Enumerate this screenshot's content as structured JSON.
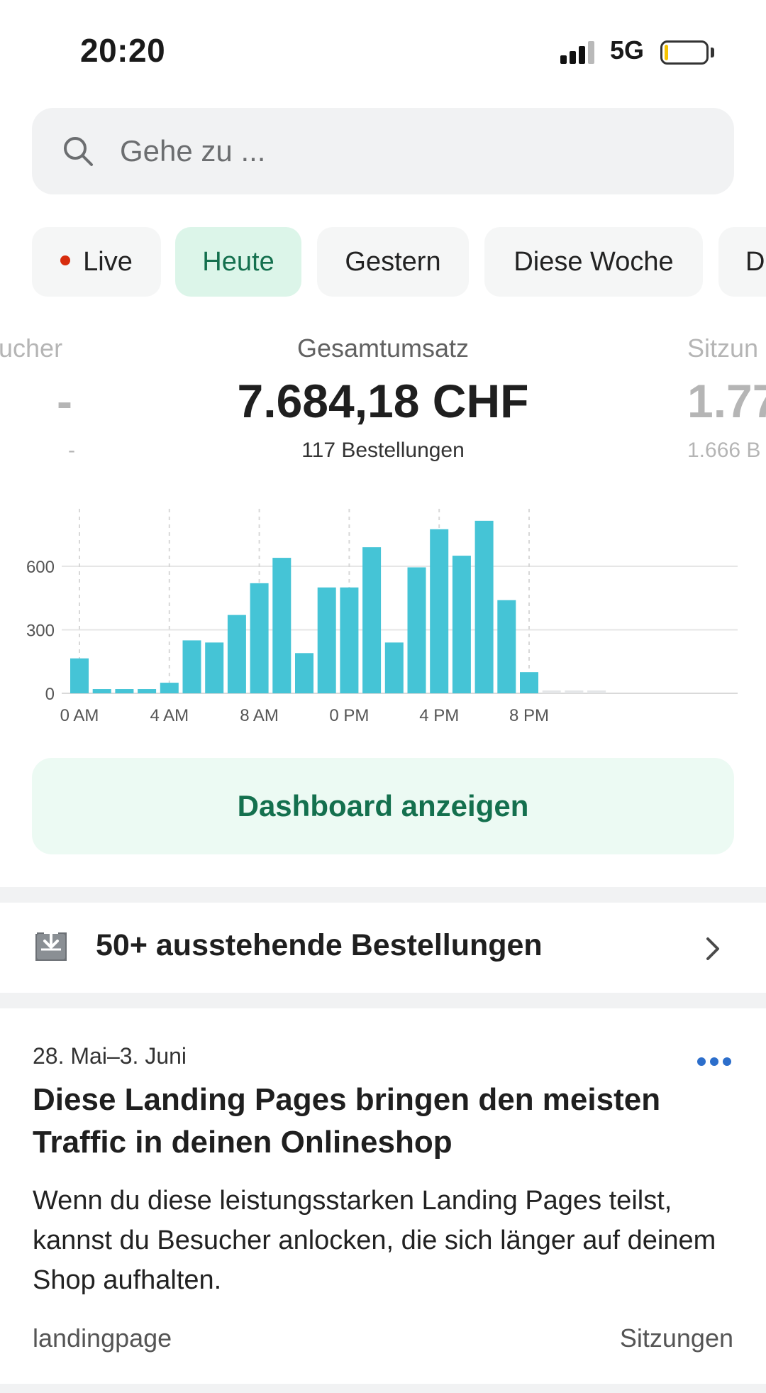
{
  "status_bar": {
    "time": "20:20",
    "network": "5G",
    "icons": [
      "signal-bars-icon",
      "battery-icon"
    ]
  },
  "search": {
    "placeholder": "Gehe zu ...",
    "icon": "search-icon"
  },
  "tabs": [
    {
      "label": "Live",
      "has_dot": true
    },
    {
      "label": "Heute",
      "active": true
    },
    {
      "label": "Gestern"
    },
    {
      "label": "Diese Woche"
    },
    {
      "label": "D"
    }
  ],
  "metrics": {
    "left": {
      "label": "ucher",
      "value": "-",
      "sub": "-"
    },
    "center": {
      "label": "Gesamtumsatz",
      "value": "7.684,18 CHF",
      "sub": "117 Bestellungen"
    },
    "right": {
      "label": "Sitzun",
      "value": "1.77",
      "sub": "1.666 B"
    }
  },
  "colors": {
    "accent_green": "#14704e",
    "bar": "#45c4d6",
    "live_dot": "#d72c0d",
    "link_blue": "#2c6ecb"
  },
  "chart_data": {
    "type": "bar",
    "categories": [
      "0",
      "1",
      "2",
      "3",
      "4",
      "5",
      "6",
      "7",
      "8",
      "9",
      "10",
      "11",
      "12",
      "13",
      "14",
      "15",
      "16",
      "17",
      "18",
      "19",
      "20",
      "21",
      "22",
      "23"
    ],
    "values": [
      165,
      20,
      20,
      20,
      50,
      250,
      240,
      370,
      520,
      640,
      190,
      500,
      500,
      690,
      240,
      595,
      775,
      650,
      815,
      440,
      100,
      12,
      12,
      12
    ],
    "ylim": [
      0,
      900
    ],
    "yticks": [
      "0",
      "300",
      "600"
    ],
    "ytick_values": [
      0,
      300,
      600
    ],
    "xtick_labels": [
      "0 AM",
      "4 AM",
      "8 AM",
      "0 PM",
      "4 PM",
      "8 PM"
    ],
    "xtick_positions": [
      0,
      4,
      8,
      12,
      16,
      20
    ],
    "future_from_index": 21,
    "grid": true
  },
  "dashboard_button": {
    "label": "Dashboard anzeigen"
  },
  "pending_orders": {
    "label": "50+ ausstehende Bestellungen",
    "icon": "inbox-download-icon"
  },
  "insight_card": {
    "date_range": "28. Mai–3. Juni",
    "title": "Diese Landing Pages bringen den meisten Traffic in deinen Onlineshop",
    "body": "Wenn du diese leistungsstarken Landing Pages teilst, kannst du Besucher anlocken, die sich länger auf deinem Shop aufhalten.",
    "footer_left": "landingpage",
    "footer_right": "Sitzungen"
  }
}
